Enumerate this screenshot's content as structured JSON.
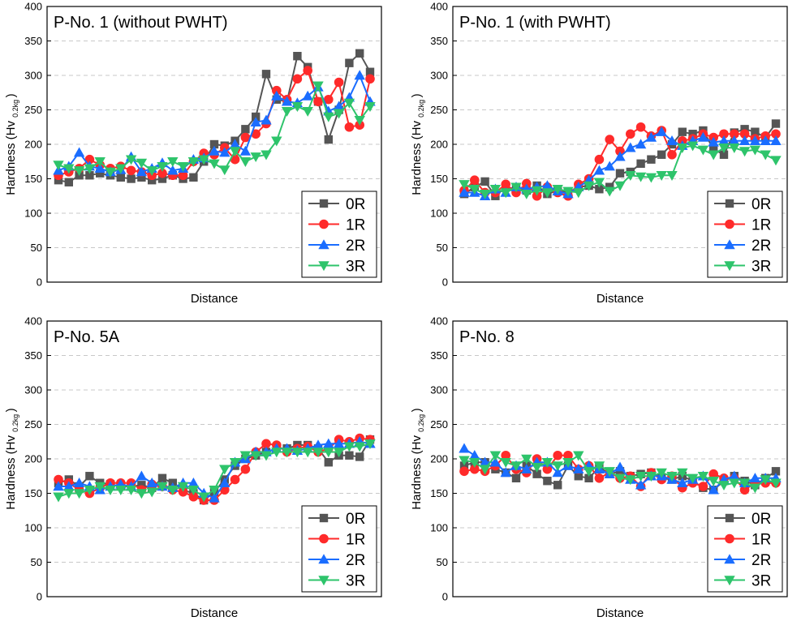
{
  "chart_data": [
    {
      "type": "line",
      "title": "P-No. 1 (without PWHT)",
      "xlabel": "Distance",
      "ylabel_main": "Hardness (Hv",
      "ylabel_sub": "0.2kg",
      "ylabel_end": ")",
      "ylim": [
        0,
        400
      ],
      "yticks": [
        "0",
        "50",
        "100",
        "150",
        "200",
        "250",
        "300",
        "350",
        "400"
      ],
      "legend_position": "bottom-right",
      "series": [
        {
          "name": "0R",
          "color": "#555555",
          "marker": "square",
          "values": [
            148,
            145,
            155,
            155,
            158,
            155,
            152,
            150,
            152,
            148,
            150,
            155,
            150,
            152,
            175,
            200,
            198,
            205,
            222,
            240,
            302,
            265,
            262,
            328,
            312,
            262,
            207,
            250,
            318,
            332,
            305
          ]
        },
        {
          "name": "1R",
          "color": "#ff2a2a",
          "marker": "circle",
          "values": [
            155,
            160,
            165,
            178,
            170,
            165,
            168,
            162,
            160,
            155,
            158,
            155,
            155,
            175,
            187,
            185,
            195,
            178,
            210,
            215,
            230,
            278,
            265,
            295,
            307,
            262,
            265,
            290,
            225,
            228,
            295
          ]
        },
        {
          "name": "2R",
          "color": "#1a6dff",
          "marker": "triangle-up",
          "values": [
            162,
            168,
            188,
            168,
            165,
            160,
            163,
            182,
            160,
            165,
            173,
            162,
            165,
            178,
            180,
            190,
            188,
            200,
            190,
            232,
            235,
            270,
            262,
            260,
            270,
            283,
            248,
            255,
            268,
            300,
            262
          ]
        },
        {
          "name": "3R",
          "color": "#2ec46b",
          "marker": "triangle-down",
          "values": [
            170,
            165,
            162,
            165,
            175,
            160,
            165,
            178,
            173,
            162,
            168,
            175,
            168,
            175,
            178,
            172,
            163,
            190,
            175,
            182,
            185,
            205,
            248,
            255,
            248,
            285,
            240,
            245,
            260,
            235,
            255
          ]
        }
      ]
    },
    {
      "type": "line",
      "title": "P-No. 1 (with PWHT)",
      "xlabel": "Distance",
      "ylabel_main": "Hardness (Hv",
      "ylabel_sub": "0.2kg",
      "ylabel_end": ")",
      "ylim": [
        0,
        400
      ],
      "yticks": [
        "0",
        "50",
        "100",
        "150",
        "200",
        "250",
        "300",
        "350",
        "400"
      ],
      "legend_position": "bottom-right",
      "series": [
        {
          "name": "0R",
          "color": "#555555",
          "marker": "square",
          "values": [
            128,
            138,
            146,
            125,
            138,
            135,
            133,
            140,
            128,
            133,
            130,
            138,
            140,
            135,
            138,
            158,
            160,
            172,
            178,
            185,
            200,
            218,
            215,
            220,
            193,
            185,
            217,
            222,
            218,
            210,
            230
          ]
        },
        {
          "name": "1R",
          "color": "#ff2a2a",
          "marker": "circle",
          "values": [
            133,
            148,
            130,
            130,
            142,
            130,
            143,
            125,
            138,
            130,
            125,
            142,
            150,
            178,
            207,
            190,
            215,
            225,
            212,
            220,
            185,
            205,
            208,
            215,
            210,
            215,
            215,
            215,
            208,
            212,
            215
          ]
        },
        {
          "name": "2R",
          "color": "#1a6dff",
          "marker": "triangle-up",
          "values": [
            130,
            130,
            125,
            135,
            130,
            138,
            135,
            138,
            140,
            132,
            128,
            138,
            148,
            162,
            168,
            182,
            195,
            200,
            210,
            218,
            205,
            198,
            205,
            210,
            203,
            205,
            205,
            205,
            205,
            205,
            205
          ]
        },
        {
          "name": "3R",
          "color": "#2ec46b",
          "marker": "triangle-down",
          "values": [
            142,
            135,
            128,
            135,
            130,
            138,
            128,
            133,
            130,
            135,
            132,
            130,
            140,
            145,
            132,
            140,
            155,
            153,
            152,
            155,
            155,
            195,
            198,
            192,
            185,
            195,
            195,
            190,
            192,
            185,
            177
          ]
        }
      ]
    },
    {
      "type": "line",
      "title": "P-No. 5A",
      "xlabel": "Distance",
      "ylabel_main": "Hardness (Hv",
      "ylabel_sub": "0.2kg",
      "ylabel_end": ")",
      "ylim": [
        0,
        400
      ],
      "yticks": [
        "0",
        "50",
        "100",
        "150",
        "200",
        "250",
        "300",
        "350",
        "400"
      ],
      "legend_position": "bottom-right",
      "series": [
        {
          "name": "0R",
          "color": "#555555",
          "marker": "square",
          "values": [
            165,
            170,
            160,
            175,
            165,
            163,
            160,
            160,
            162,
            158,
            172,
            165,
            155,
            150,
            140,
            152,
            170,
            190,
            200,
            205,
            210,
            215,
            215,
            220,
            220,
            215,
            195,
            205,
            205,
            203,
            228
          ]
        },
        {
          "name": "1R",
          "color": "#ff2a2a",
          "marker": "circle",
          "values": [
            170,
            165,
            155,
            150,
            158,
            165,
            165,
            165,
            155,
            163,
            160,
            155,
            152,
            145,
            140,
            140,
            155,
            170,
            185,
            210,
            222,
            220,
            210,
            215,
            218,
            210,
            215,
            228,
            225,
            230,
            228
          ]
        },
        {
          "name": "2R",
          "color": "#1a6dff",
          "marker": "triangle-up",
          "values": [
            160,
            160,
            165,
            160,
            155,
            160,
            163,
            160,
            175,
            165,
            160,
            158,
            165,
            165,
            150,
            143,
            165,
            195,
            200,
            210,
            210,
            215,
            215,
            212,
            215,
            220,
            222,
            222,
            222,
            225,
            222
          ]
        },
        {
          "name": "3R",
          "color": "#2ec46b",
          "marker": "triangle-down",
          "values": [
            145,
            150,
            150,
            155,
            160,
            155,
            155,
            155,
            150,
            152,
            160,
            155,
            160,
            155,
            145,
            155,
            185,
            195,
            205,
            205,
            205,
            210,
            210,
            210,
            210,
            210,
            210,
            210,
            218,
            218,
            222
          ]
        }
      ]
    },
    {
      "type": "line",
      "title": "P-No. 8",
      "xlabel": "Distance",
      "ylabel_main": "Hardness (Hv",
      "ylabel_sub": "0.2kg",
      "ylabel_end": ")",
      "ylim": [
        0,
        400
      ],
      "yticks": [
        "0",
        "50",
        "100",
        "150",
        "200",
        "250",
        "300",
        "350",
        "400"
      ],
      "legend_position": "bottom-right",
      "series": [
        {
          "name": "0R",
          "color": "#555555",
          "marker": "square",
          "values": [
            190,
            195,
            195,
            185,
            180,
            172,
            190,
            178,
            168,
            162,
            190,
            175,
            172,
            188,
            178,
            182,
            175,
            178,
            180,
            172,
            170,
            175,
            168,
            158,
            155,
            168,
            175,
            168,
            162,
            172,
            182
          ]
        },
        {
          "name": "1R",
          "color": "#ff2a2a",
          "marker": "circle",
          "values": [
            182,
            185,
            182,
            190,
            205,
            185,
            180,
            200,
            185,
            205,
            205,
            185,
            190,
            172,
            180,
            172,
            175,
            160,
            180,
            170,
            175,
            158,
            165,
            160,
            178,
            172,
            172,
            155,
            165,
            165,
            165
          ]
        },
        {
          "name": "2R",
          "color": "#1a6dff",
          "marker": "triangle-up",
          "values": [
            215,
            205,
            195,
            195,
            180,
            190,
            185,
            195,
            195,
            180,
            190,
            185,
            190,
            185,
            178,
            188,
            170,
            162,
            175,
            175,
            170,
            165,
            170,
            175,
            155,
            170,
            175,
            165,
            172,
            172,
            172
          ]
        },
        {
          "name": "3R",
          "color": "#2ec46b",
          "marker": "triangle-down",
          "values": [
            198,
            195,
            185,
            205,
            195,
            190,
            200,
            188,
            195,
            190,
            195,
            205,
            182,
            190,
            182,
            172,
            170,
            175,
            175,
            180,
            175,
            180,
            172,
            175,
            168,
            162,
            165,
            165,
            158,
            170,
            165
          ]
        }
      ]
    }
  ]
}
